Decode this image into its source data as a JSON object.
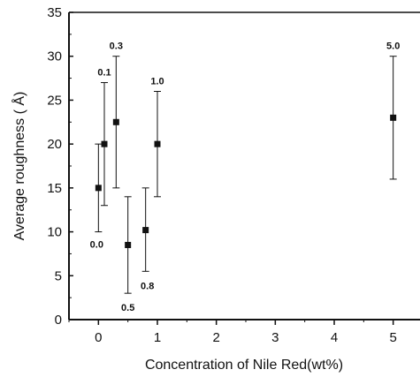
{
  "chart_data": {
    "type": "scatter",
    "title": "",
    "xlabel": "Concentration of Nile Red(wt%)",
    "ylabel": "Average  roughness ( Å)",
    "xlim": [
      -0.5,
      5.5
    ],
    "ylim": [
      0,
      35
    ],
    "x_ticks": [
      0,
      1,
      2,
      3,
      4,
      5
    ],
    "y_ticks": [
      0,
      5,
      10,
      15,
      20,
      25,
      30,
      35
    ],
    "grid": false,
    "legend": "none",
    "series": [
      {
        "points": [
          {
            "x": 0.0,
            "y": 15.0,
            "err_low": 10.0,
            "err_high": 20.0,
            "label": "0.0"
          },
          {
            "x": 0.1,
            "y": 20.0,
            "err_low": 13.0,
            "err_high": 27.0,
            "label": "0.1"
          },
          {
            "x": 0.3,
            "y": 22.5,
            "err_low": 15.0,
            "err_high": 30.0,
            "label": "0.3"
          },
          {
            "x": 0.5,
            "y": 8.5,
            "err_low": 3.0,
            "err_high": 14.0,
            "label": "0.5"
          },
          {
            "x": 0.8,
            "y": 10.2,
            "err_low": 5.5,
            "err_high": 15.0,
            "label": "0.8"
          },
          {
            "x": 1.0,
            "y": 20.0,
            "err_low": 14.0,
            "err_high": 26.0,
            "label": "1.0"
          },
          {
            "x": 5.0,
            "y": 23.0,
            "err_low": 16.0,
            "err_high": 30.0,
            "label": "5.0"
          }
        ]
      }
    ],
    "colors": {
      "marker": "#111111",
      "axis": "#111111"
    }
  }
}
